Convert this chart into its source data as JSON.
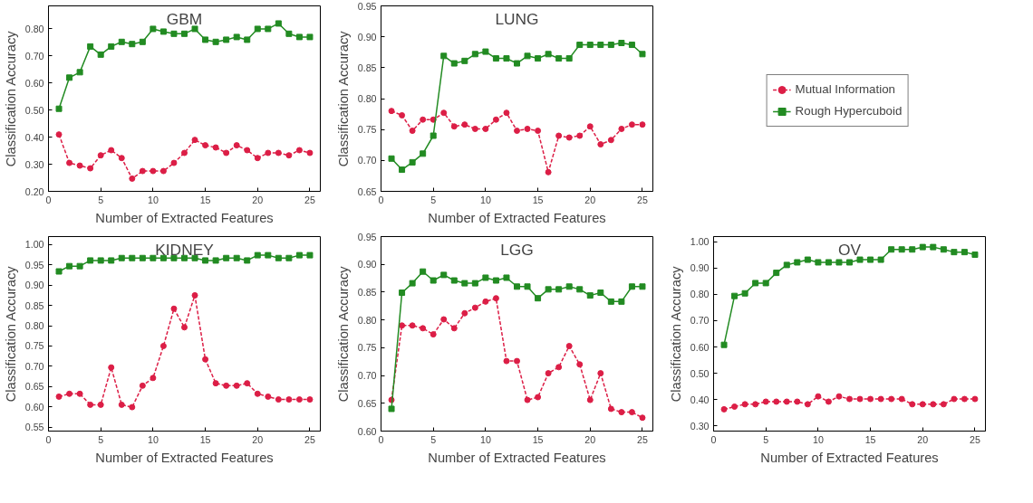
{
  "chart_data": [
    {
      "type": "line",
      "title": "GBM",
      "xlabel": "Number of Extracted Features",
      "ylabel": "Classification Accuracy",
      "x": [
        1,
        2,
        3,
        4,
        5,
        6,
        7,
        8,
        9,
        10,
        11,
        12,
        13,
        14,
        15,
        16,
        17,
        18,
        19,
        20,
        21,
        22,
        23,
        24,
        25
      ],
      "xlim": [
        0,
        26
      ],
      "xticks": [
        0,
        5,
        10,
        15,
        20,
        25
      ],
      "ylim": [
        0.2,
        0.885
      ],
      "yticks": [
        {
          "value": 0.2,
          "label": "0.20"
        },
        {
          "value": 0.3,
          "label": "0.30"
        },
        {
          "value": 0.4,
          "label": "0.40"
        },
        {
          "value": 0.5,
          "label": "0.50"
        },
        {
          "value": 0.6,
          "label": "0.60"
        },
        {
          "value": 0.7,
          "label": "0.70"
        },
        {
          "value": 0.8,
          "label": "0.80"
        }
      ],
      "grid": false,
      "legend": false,
      "series": [
        {
          "color": "#dc1e46",
          "marker": "circle",
          "line_style": "dashed",
          "values": [
            0.41,
            0.305,
            0.295,
            0.285,
            0.333,
            0.352,
            0.323,
            0.247,
            0.275,
            0.275,
            0.275,
            0.305,
            0.342,
            0.39,
            0.37,
            0.362,
            0.342,
            0.37,
            0.352,
            0.323,
            0.342,
            0.342,
            0.333,
            0.352,
            0.342
          ]
        },
        {
          "color": "#228b22",
          "marker": "square",
          "line_style": "solid",
          "values": [
            0.505,
            0.62,
            0.64,
            0.735,
            0.705,
            0.735,
            0.752,
            0.744,
            0.752,
            0.8,
            0.79,
            0.782,
            0.782,
            0.8,
            0.76,
            0.752,
            0.76,
            0.77,
            0.76,
            0.8,
            0.8,
            0.82,
            0.782,
            0.77,
            0.77
          ]
        }
      ]
    },
    {
      "type": "line",
      "title": "LUNG",
      "xlabel": "Number of Extracted Features",
      "ylabel": "Classification Accuracy",
      "x": [
        1,
        2,
        3,
        4,
        5,
        6,
        7,
        8,
        9,
        10,
        11,
        12,
        13,
        14,
        15,
        16,
        17,
        18,
        19,
        20,
        21,
        22,
        23,
        24,
        25
      ],
      "xlim": [
        0,
        26
      ],
      "xticks": [
        0,
        5,
        10,
        15,
        20,
        25
      ],
      "ylim": [
        0.65,
        0.95
      ],
      "yticks": [
        {
          "value": 0.65,
          "label": "0.65"
        },
        {
          "value": 0.7,
          "label": "0.70"
        },
        {
          "value": 0.75,
          "label": "0.75"
        },
        {
          "value": 0.8,
          "label": "0.80"
        },
        {
          "value": 0.85,
          "label": "0.85"
        },
        {
          "value": 0.9,
          "label": "0.90"
        },
        {
          "value": 0.95,
          "label": "0.95"
        }
      ],
      "grid": false,
      "legend": "right",
      "series": [
        {
          "name": "Mutual Information",
          "color": "#dc1e46",
          "marker": "circle",
          "line_style": "dashed",
          "values": [
            0.78,
            0.773,
            0.748,
            0.766,
            0.766,
            0.777,
            0.755,
            0.758,
            0.751,
            0.751,
            0.766,
            0.777,
            0.748,
            0.751,
            0.748,
            0.681,
            0.74,
            0.737,
            0.74,
            0.755,
            0.726,
            0.733,
            0.751,
            0.758,
            0.758
          ]
        },
        {
          "name": "Rough Hypercuboid",
          "color": "#228b22",
          "marker": "square",
          "line_style": "solid",
          "values": [
            0.703,
            0.685,
            0.697,
            0.711,
            0.74,
            0.869,
            0.857,
            0.861,
            0.872,
            0.876,
            0.865,
            0.865,
            0.857,
            0.869,
            0.865,
            0.872,
            0.865,
            0.865,
            0.887,
            0.887,
            0.887,
            0.887,
            0.89,
            0.887,
            0.872
          ]
        }
      ]
    },
    {
      "type": "line",
      "title": "KIDNEY",
      "xlabel": "Number of Extracted Features",
      "ylabel": "Classification Accuracy",
      "x": [
        1,
        2,
        3,
        4,
        5,
        6,
        7,
        8,
        9,
        10,
        11,
        12,
        13,
        14,
        15,
        16,
        17,
        18,
        19,
        20,
        21,
        22,
        23,
        24,
        25
      ],
      "xlim": [
        0,
        26
      ],
      "xticks": [
        0,
        5,
        10,
        15,
        20,
        25
      ],
      "ylim": [
        0.54,
        1.02
      ],
      "yticks": [
        {
          "value": 0.55,
          "label": "0.55"
        },
        {
          "value": 0.6,
          "label": "0.60"
        },
        {
          "value": 0.65,
          "label": "0.65"
        },
        {
          "value": 0.7,
          "label": "0.70"
        },
        {
          "value": 0.75,
          "label": "0.75"
        },
        {
          "value": 0.8,
          "label": "0.80"
        },
        {
          "value": 0.85,
          "label": "0.85"
        },
        {
          "value": 0.9,
          "label": "0.90"
        },
        {
          "value": 0.95,
          "label": "0.95"
        },
        {
          "value": 1.0,
          "label": "1.00"
        }
      ],
      "grid": false,
      "legend": false,
      "series": [
        {
          "color": "#dc1e46",
          "marker": "circle",
          "line_style": "dashed",
          "values": [
            0.625,
            0.632,
            0.632,
            0.605,
            0.605,
            0.697,
            0.605,
            0.599,
            0.652,
            0.671,
            0.75,
            0.842,
            0.796,
            0.875,
            0.717,
            0.658,
            0.652,
            0.652,
            0.658,
            0.632,
            0.625,
            0.618,
            0.618,
            0.618,
            0.618
          ]
        },
        {
          "color": "#228b22",
          "marker": "square",
          "line_style": "solid",
          "values": [
            0.934,
            0.947,
            0.947,
            0.961,
            0.961,
            0.961,
            0.967,
            0.967,
            0.967,
            0.967,
            0.967,
            0.967,
            0.967,
            0.967,
            0.961,
            0.961,
            0.967,
            0.967,
            0.961,
            0.974,
            0.974,
            0.967,
            0.967,
            0.974,
            0.974
          ]
        }
      ]
    },
    {
      "type": "line",
      "title": "LGG",
      "xlabel": "Number of Extracted Features",
      "ylabel": "Classification Accuracy",
      "x": [
        1,
        2,
        3,
        4,
        5,
        6,
        7,
        8,
        9,
        10,
        11,
        12,
        13,
        14,
        15,
        16,
        17,
        18,
        19,
        20,
        21,
        22,
        23,
        24,
        25
      ],
      "xlim": [
        0,
        26
      ],
      "xticks": [
        0,
        5,
        10,
        15,
        20,
        25
      ],
      "ylim": [
        0.6,
        0.95
      ],
      "yticks": [
        {
          "value": 0.6,
          "label": "0.60"
        },
        {
          "value": 0.65,
          "label": "0.65"
        },
        {
          "value": 0.7,
          "label": "0.70"
        },
        {
          "value": 0.75,
          "label": "0.75"
        },
        {
          "value": 0.8,
          "label": "0.80"
        },
        {
          "value": 0.85,
          "label": "0.85"
        },
        {
          "value": 0.9,
          "label": "0.90"
        },
        {
          "value": 0.95,
          "label": "0.95"
        }
      ],
      "grid": false,
      "legend": false,
      "series": [
        {
          "color": "#dc1e46",
          "marker": "circle",
          "line_style": "dashed",
          "values": [
            0.656,
            0.79,
            0.79,
            0.785,
            0.774,
            0.801,
            0.785,
            0.812,
            0.822,
            0.833,
            0.839,
            0.726,
            0.726,
            0.656,
            0.661,
            0.704,
            0.715,
            0.753,
            0.72,
            0.656,
            0.704,
            0.64,
            0.634,
            0.634,
            0.624
          ]
        },
        {
          "color": "#228b22",
          "marker": "square",
          "line_style": "solid",
          "values": [
            0.64,
            0.849,
            0.866,
            0.887,
            0.871,
            0.881,
            0.871,
            0.866,
            0.866,
            0.876,
            0.871,
            0.876,
            0.86,
            0.86,
            0.839,
            0.855,
            0.855,
            0.86,
            0.855,
            0.844,
            0.849,
            0.833,
            0.833,
            0.86,
            0.86
          ]
        }
      ]
    },
    {
      "type": "line",
      "title": "OV",
      "xlabel": "Number of Extracted Features",
      "ylabel": "Classification Accuracy",
      "x": [
        1,
        2,
        3,
        4,
        5,
        6,
        7,
        8,
        9,
        10,
        11,
        12,
        13,
        14,
        15,
        16,
        17,
        18,
        19,
        20,
        21,
        22,
        23,
        24,
        25
      ],
      "xlim": [
        0,
        26
      ],
      "xticks": [
        0,
        5,
        10,
        15,
        20,
        25
      ],
      "ylim": [
        0.28,
        1.02
      ],
      "yticks": [
        {
          "value": 0.3,
          "label": "0.30"
        },
        {
          "value": 0.4,
          "label": "0.40"
        },
        {
          "value": 0.5,
          "label": "0.50"
        },
        {
          "value": 0.6,
          "label": "0.60"
        },
        {
          "value": 0.7,
          "label": "0.70"
        },
        {
          "value": 0.8,
          "label": "0.80"
        },
        {
          "value": 0.9,
          "label": "0.90"
        },
        {
          "value": 1.0,
          "label": "1.00"
        }
      ],
      "grid": false,
      "legend": false,
      "series": [
        {
          "color": "#dc1e46",
          "marker": "circle",
          "line_style": "dashed",
          "values": [
            0.363,
            0.373,
            0.382,
            0.382,
            0.392,
            0.392,
            0.392,
            0.392,
            0.382,
            0.412,
            0.392,
            0.412,
            0.402,
            0.402,
            0.402,
            0.402,
            0.402,
            0.402,
            0.382,
            0.382,
            0.382,
            0.382,
            0.402,
            0.402,
            0.402
          ]
        },
        {
          "color": "#228b22",
          "marker": "square",
          "line_style": "solid",
          "values": [
            0.608,
            0.794,
            0.804,
            0.843,
            0.843,
            0.882,
            0.912,
            0.922,
            0.932,
            0.922,
            0.922,
            0.922,
            0.922,
            0.932,
            0.932,
            0.932,
            0.971,
            0.971,
            0.971,
            0.98,
            0.98,
            0.971,
            0.961,
            0.961,
            0.951
          ]
        }
      ]
    }
  ]
}
